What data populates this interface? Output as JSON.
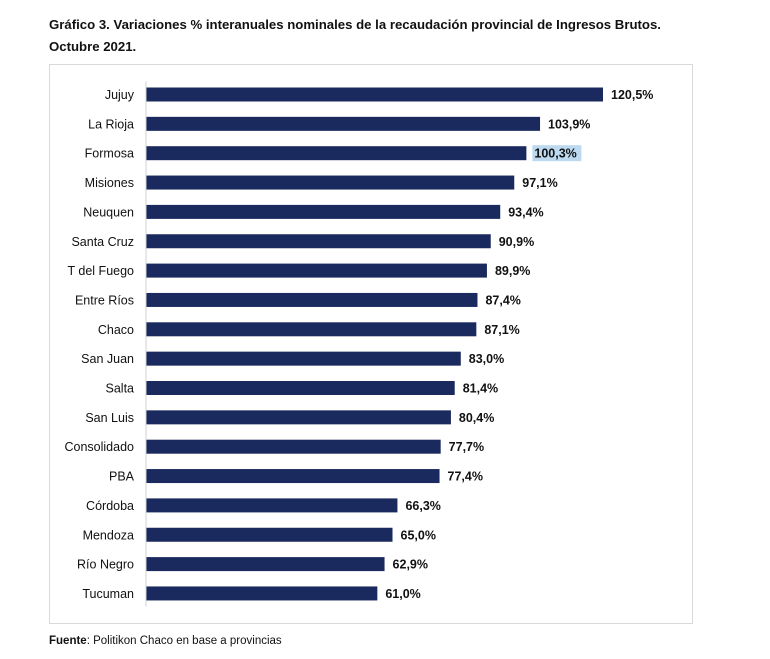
{
  "title_line1": "Gráfico 3. Variaciones % interanuales nominales de la recaudación provincial de Ingresos Brutos.",
  "title_line2": "Octubre 2021.",
  "source_label": "Fuente",
  "source_text": ": Politikon Chaco en base a provincias",
  "colors": {
    "bar": "#1b2a5e",
    "highlight": "#bcd9f0"
  },
  "chart_data": {
    "type": "bar",
    "orientation": "horizontal",
    "categories": [
      "Jujuy",
      "La Rioja",
      "Formosa",
      "Misiones",
      "Neuquen",
      "Santa Cruz",
      "T del Fuego",
      "Entre Ríos",
      "Chaco",
      "San Juan",
      "Salta",
      "San Luis",
      "Consolidado",
      "PBA",
      "Córdoba",
      "Mendoza",
      "Río Negro",
      "Tucuman"
    ],
    "values": [
      120.5,
      103.9,
      100.3,
      97.1,
      93.4,
      90.9,
      89.9,
      87.4,
      87.1,
      83.0,
      81.4,
      80.4,
      77.7,
      77.4,
      66.3,
      65.0,
      62.9,
      61.0
    ],
    "labels": [
      "120,5%",
      "103,9%",
      "100,3%",
      "97,1%",
      "93,4%",
      "90,9%",
      "89,9%",
      "87,4%",
      "87,1%",
      "83,0%",
      "81,4%",
      "80,4%",
      "77,7%",
      "77,4%",
      "66,3%",
      "65,0%",
      "62,9%",
      "61,0%"
    ],
    "highlighted_label": "100,3%",
    "xlim": [
      0,
      120.5
    ],
    "grid": false,
    "legend": "none"
  }
}
